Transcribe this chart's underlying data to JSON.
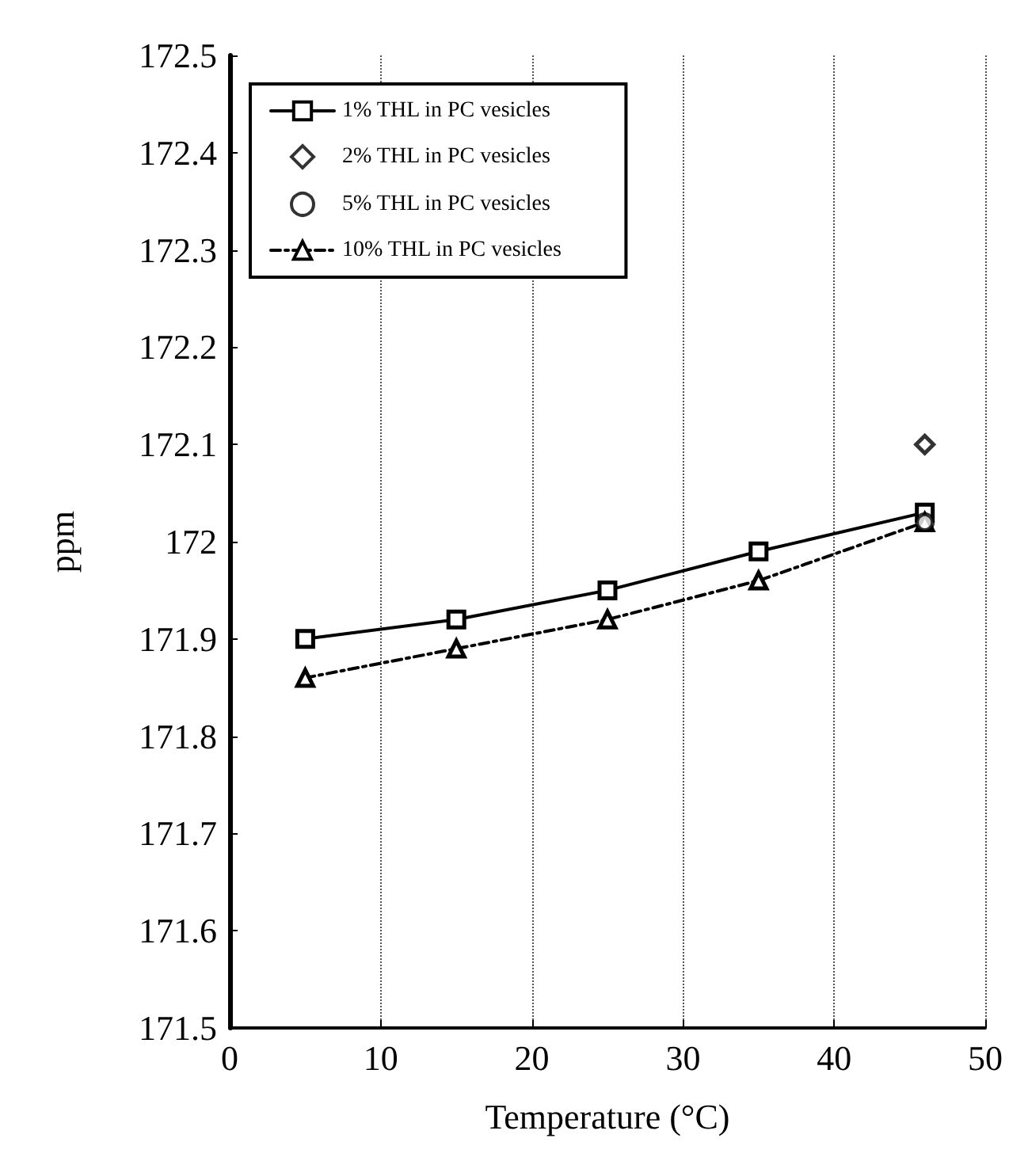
{
  "chart_data": {
    "type": "line",
    "xlabel": "Temperature (°C)",
    "ylabel": "ppm",
    "x": [
      5,
      15,
      25,
      35,
      46
    ],
    "series": [
      {
        "name": "1% THL in PC vesicles",
        "color": "#000000",
        "values": [
          171.9,
          171.92,
          171.95,
          171.99,
          172.03
        ],
        "marker": "square",
        "line_style": "solid"
      },
      {
        "name": "2% THL in PC vesicles",
        "type": "scatter",
        "color": "#000000",
        "x": [
          46
        ],
        "values": [
          172.1
        ],
        "marker": "diamond"
      },
      {
        "name": "5% THL in PC vesicles",
        "type": "scatter",
        "color": "#000000",
        "x": [
          46
        ],
        "values": [
          172.02
        ],
        "marker": "circle"
      },
      {
        "name": "10% THL in PC vesicles",
        "color": "#000000",
        "values": [
          171.86,
          171.89,
          171.92,
          171.96,
          172.02
        ],
        "marker": "triangle",
        "line_style": "dashed"
      }
    ],
    "xlim": [
      0,
      50
    ],
    "xticks": [
      0,
      10,
      20,
      30,
      40,
      50
    ],
    "ylim": [
      171.5,
      172.5
    ],
    "yticks": [
      171.5,
      171.6,
      171.7,
      171.8,
      171.9,
      172,
      172.1,
      172.2,
      172.3,
      172.4,
      172.5
    ],
    "grid": "x",
    "legend": "top left"
  }
}
